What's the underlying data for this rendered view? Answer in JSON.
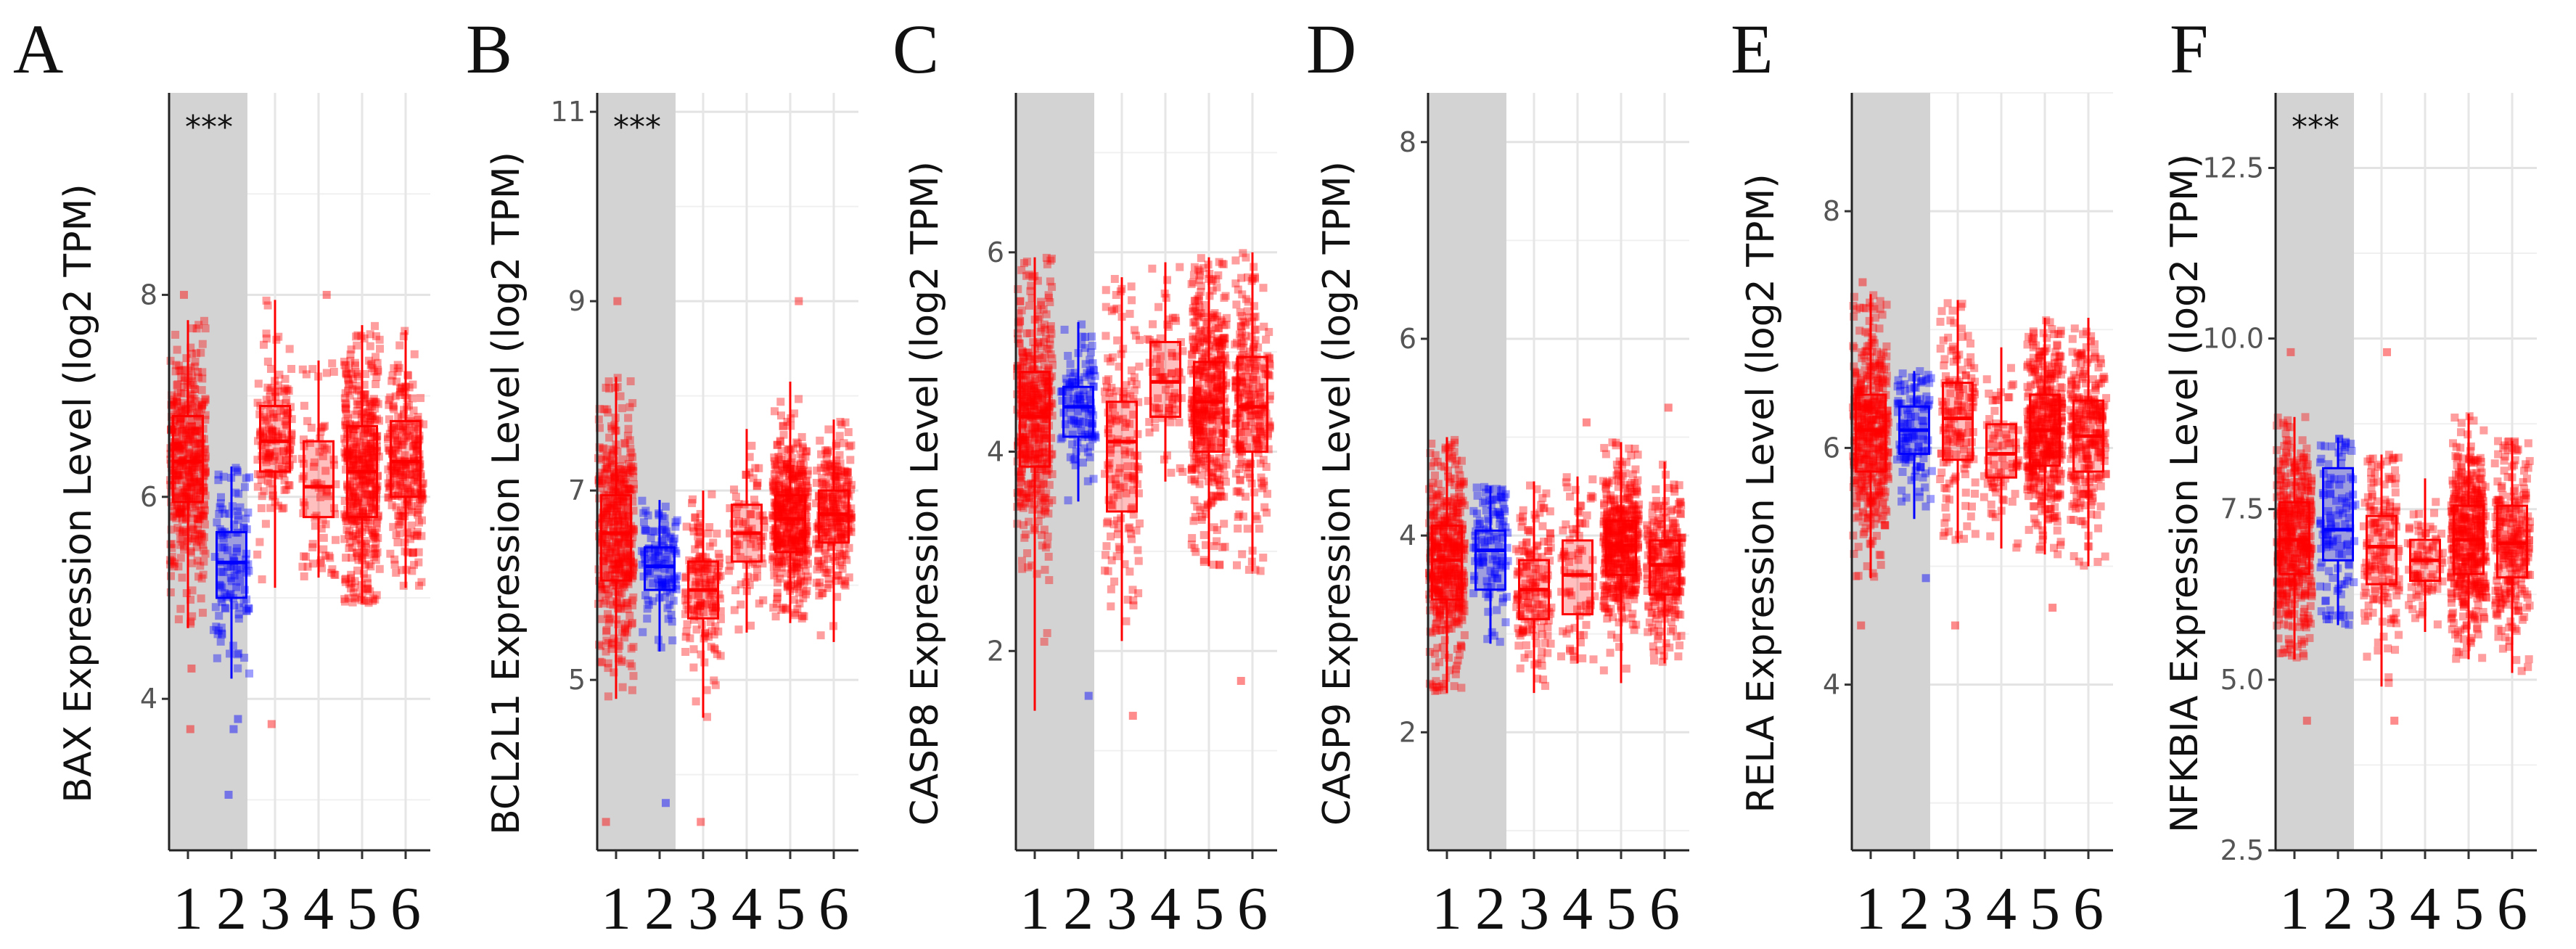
{
  "chart_data": [
    {
      "type": "box",
      "panel_label": "A",
      "title": "",
      "ylabel": "BAX Expression Level (log2 TPM)",
      "ylim": [
        2.5,
        10.0
      ],
      "yticks": [
        4,
        6,
        8
      ],
      "yminor": [
        3,
        5,
        7,
        9
      ],
      "categories": [
        "1",
        "2",
        "3",
        "4",
        "5",
        "6"
      ],
      "highlight_categories": [
        "1",
        "2"
      ],
      "significance": "***",
      "colors": [
        "#ff0000",
        "#0000ff",
        "#ff0000",
        "#ff0000",
        "#ff0000",
        "#ff0000"
      ],
      "series": [
        {
          "name": "1",
          "min": 4.7,
          "q1": 5.95,
          "median": 6.35,
          "q3": 6.8,
          "max": 7.75,
          "n": 500,
          "outliers": [
            3.7,
            4.3,
            8.0
          ]
        },
        {
          "name": "2",
          "min": 4.2,
          "q1": 5.0,
          "median": 5.35,
          "q3": 5.65,
          "max": 6.3,
          "n": 110,
          "outliers": [
            3.05,
            3.7,
            3.8
          ]
        },
        {
          "name": "3",
          "min": 5.1,
          "q1": 6.25,
          "median": 6.55,
          "q3": 6.9,
          "max": 7.95,
          "n": 150,
          "outliers": [
            3.75
          ]
        },
        {
          "name": "4",
          "min": 5.2,
          "q1": 5.8,
          "median": 6.1,
          "q3": 6.55,
          "max": 7.35,
          "n": 75,
          "outliers": [
            8.0
          ]
        },
        {
          "name": "5",
          "min": 4.95,
          "q1": 5.8,
          "median": 6.25,
          "q3": 6.7,
          "max": 7.7,
          "n": 450,
          "outliers": []
        },
        {
          "name": "6",
          "min": 5.1,
          "q1": 6.0,
          "median": 6.35,
          "q3": 6.75,
          "max": 7.65,
          "n": 250,
          "outliers": []
        }
      ]
    },
    {
      "type": "box",
      "panel_label": "B",
      "title": "",
      "ylabel": "BCL2L1 Expression Level (log2 TPM)",
      "ylim": [
        3.2,
        11.2
      ],
      "yticks": [
        5,
        7,
        9,
        11
      ],
      "yminor": [
        4,
        6,
        8,
        10
      ],
      "categories": [
        "1",
        "2",
        "3",
        "4",
        "5",
        "6"
      ],
      "highlight_categories": [
        "1",
        "2"
      ],
      "significance": "***",
      "colors": [
        "#ff0000",
        "#0000ff",
        "#ff0000",
        "#ff0000",
        "#ff0000",
        "#ff0000"
      ],
      "series": [
        {
          "name": "1",
          "min": 4.8,
          "q1": 6.05,
          "median": 6.55,
          "q3": 6.95,
          "max": 8.2,
          "n": 500,
          "outliers": [
            3.5,
            9.0
          ]
        },
        {
          "name": "2",
          "min": 5.3,
          "q1": 5.95,
          "median": 6.2,
          "q3": 6.4,
          "max": 6.9,
          "n": 110,
          "outliers": [
            3.7
          ]
        },
        {
          "name": "3",
          "min": 4.6,
          "q1": 5.65,
          "median": 5.95,
          "q3": 6.25,
          "max": 7.0,
          "n": 150,
          "outliers": [
            3.5
          ]
        },
        {
          "name": "4",
          "min": 5.5,
          "q1": 6.25,
          "median": 6.55,
          "q3": 6.85,
          "max": 7.65,
          "n": 75,
          "outliers": []
        },
        {
          "name": "5",
          "min": 5.6,
          "q1": 6.35,
          "median": 6.7,
          "q3": 6.95,
          "max": 8.15,
          "n": 450,
          "outliers": [
            9.0
          ]
        },
        {
          "name": "6",
          "min": 5.4,
          "q1": 6.45,
          "median": 6.75,
          "q3": 7.0,
          "max": 7.75,
          "n": 250,
          "outliers": []
        }
      ]
    },
    {
      "type": "box",
      "panel_label": "C",
      "title": "",
      "ylabel": "CASP8 Expression Level (log2 TPM)",
      "ylim": [
        0.0,
        7.6
      ],
      "yticks": [
        2,
        4,
        6
      ],
      "yminor": [
        1,
        3,
        5,
        7
      ],
      "categories": [
        "1",
        "2",
        "3",
        "4",
        "5",
        "6"
      ],
      "highlight_categories": [
        "1",
        "2"
      ],
      "significance": "",
      "colors": [
        "#ff0000",
        "#0000ff",
        "#ff0000",
        "#ff0000",
        "#ff0000",
        "#ff0000"
      ],
      "series": [
        {
          "name": "1",
          "min": 1.4,
          "q1": 3.85,
          "median": 4.35,
          "q3": 4.8,
          "max": 5.95,
          "n": 500,
          "outliers": []
        },
        {
          "name": "2",
          "min": 3.5,
          "q1": 4.15,
          "median": 4.45,
          "q3": 4.65,
          "max": 5.3,
          "n": 110,
          "outliers": [
            1.55
          ]
        },
        {
          "name": "3",
          "min": 2.1,
          "q1": 3.4,
          "median": 4.1,
          "q3": 4.5,
          "max": 5.75,
          "n": 150,
          "outliers": [
            1.35
          ]
        },
        {
          "name": "4",
          "min": 3.7,
          "q1": 4.35,
          "median": 4.7,
          "q3": 5.1,
          "max": 5.9,
          "n": 75,
          "outliers": []
        },
        {
          "name": "5",
          "min": 2.85,
          "q1": 4.0,
          "median": 4.5,
          "q3": 4.9,
          "max": 5.95,
          "n": 450,
          "outliers": []
        },
        {
          "name": "6",
          "min": 2.8,
          "q1": 4.0,
          "median": 4.45,
          "q3": 4.95,
          "max": 6.0,
          "n": 250,
          "outliers": [
            1.7
          ]
        }
      ]
    },
    {
      "type": "box",
      "panel_label": "D",
      "title": "",
      "ylabel": "CASP9 Expression Level (log2 TPM)",
      "ylim": [
        0.8,
        8.5
      ],
      "yticks": [
        2,
        4,
        6,
        8
      ],
      "yminor": [
        1,
        3,
        5,
        7
      ],
      "categories": [
        "1",
        "2",
        "3",
        "4",
        "5",
        "6"
      ],
      "highlight_categories": [
        "1",
        "2"
      ],
      "significance": "",
      "colors": [
        "#ff0000",
        "#0000ff",
        "#ff0000",
        "#ff0000",
        "#ff0000",
        "#ff0000"
      ],
      "series": [
        {
          "name": "1",
          "min": 2.4,
          "q1": 3.35,
          "median": 3.75,
          "q3": 4.1,
          "max": 5.0,
          "n": 500,
          "outliers": []
        },
        {
          "name": "2",
          "min": 2.9,
          "q1": 3.45,
          "median": 3.85,
          "q3": 4.05,
          "max": 4.5,
          "n": 110,
          "outliers": []
        },
        {
          "name": "3",
          "min": 2.4,
          "q1": 3.15,
          "median": 3.45,
          "q3": 3.75,
          "max": 4.55,
          "n": 150,
          "outliers": []
        },
        {
          "name": "4",
          "min": 2.7,
          "q1": 3.2,
          "median": 3.6,
          "q3": 3.95,
          "max": 4.6,
          "n": 75,
          "outliers": [
            5.15
          ]
        },
        {
          "name": "5",
          "min": 2.5,
          "q1": 3.6,
          "median": 3.9,
          "q3": 4.15,
          "max": 4.95,
          "n": 450,
          "outliers": []
        },
        {
          "name": "6",
          "min": 2.7,
          "q1": 3.4,
          "median": 3.7,
          "q3": 3.95,
          "max": 4.75,
          "n": 250,
          "outliers": [
            5.3
          ]
        }
      ]
    },
    {
      "type": "box",
      "panel_label": "E",
      "title": "",
      "ylabel": "RELA Expression Level (log2 TPM)",
      "ylim": [
        2.6,
        9.0
      ],
      "yticks": [
        4,
        6,
        8
      ],
      "yminor": [
        3,
        5,
        7,
        9
      ],
      "categories": [
        "1",
        "2",
        "3",
        "4",
        "5",
        "6"
      ],
      "highlight_categories": [
        "1",
        "2"
      ],
      "significance": "",
      "colors": [
        "#ff0000",
        "#0000ff",
        "#ff0000",
        "#ff0000",
        "#ff0000",
        "#ff0000"
      ],
      "series": [
        {
          "name": "1",
          "min": 4.9,
          "q1": 5.8,
          "median": 6.15,
          "q3": 6.45,
          "max": 7.3,
          "n": 500,
          "outliers": [
            4.5,
            7.4
          ]
        },
        {
          "name": "2",
          "min": 5.4,
          "q1": 5.95,
          "median": 6.15,
          "q3": 6.35,
          "max": 6.65,
          "n": 110,
          "outliers": [
            4.9
          ]
        },
        {
          "name": "3",
          "min": 5.2,
          "q1": 5.9,
          "median": 6.25,
          "q3": 6.55,
          "max": 7.25,
          "n": 150,
          "outliers": [
            4.5
          ]
        },
        {
          "name": "4",
          "min": 5.15,
          "q1": 5.75,
          "median": 5.95,
          "q3": 6.2,
          "max": 6.85,
          "n": 75,
          "outliers": []
        },
        {
          "name": "5",
          "min": 5.1,
          "q1": 5.85,
          "median": 6.15,
          "q3": 6.45,
          "max": 7.1,
          "n": 450,
          "outliers": [
            4.65
          ]
        },
        {
          "name": "6",
          "min": 5.0,
          "q1": 5.8,
          "median": 6.1,
          "q3": 6.4,
          "max": 7.1,
          "n": 250,
          "outliers": []
        }
      ]
    },
    {
      "type": "box",
      "panel_label": "F",
      "title": "",
      "ylabel": "NFKBIA Expression Level (log2 TPM)",
      "ylim": [
        2.5,
        13.6
      ],
      "yticks": [
        2.5,
        5.0,
        7.5,
        10.0,
        12.5
      ],
      "ytick_labels": [
        "2.5",
        "5.0",
        "7.5",
        "10.0",
        "12.5"
      ],
      "yminor": [
        3.75,
        6.25,
        8.75,
        11.25
      ],
      "categories": [
        "1",
        "2",
        "3",
        "4",
        "5",
        "6"
      ],
      "highlight_categories": [
        "1",
        "2"
      ],
      "significance": "***",
      "colors": [
        "#ff0000",
        "#0000ff",
        "#ff0000",
        "#ff0000",
        "#ff0000",
        "#ff0000"
      ],
      "series": [
        {
          "name": "1",
          "min": 5.3,
          "q1": 6.55,
          "median": 7.05,
          "q3": 7.6,
          "max": 8.85,
          "n": 500,
          "outliers": [
            4.4,
            9.8
          ]
        },
        {
          "name": "2",
          "min": 5.8,
          "q1": 6.75,
          "median": 7.2,
          "q3": 8.1,
          "max": 8.55,
          "n": 110,
          "outliers": []
        },
        {
          "name": "3",
          "min": 4.9,
          "q1": 6.4,
          "median": 6.95,
          "q3": 7.4,
          "max": 8.3,
          "n": 150,
          "outliers": [
            4.4,
            9.8
          ]
        },
        {
          "name": "4",
          "min": 5.7,
          "q1": 6.45,
          "median": 6.75,
          "q3": 7.05,
          "max": 7.95,
          "n": 75,
          "outliers": []
        },
        {
          "name": "5",
          "min": 5.3,
          "q1": 6.55,
          "median": 7.05,
          "q3": 7.55,
          "max": 8.9,
          "n": 450,
          "outliers": []
        },
        {
          "name": "6",
          "min": 5.1,
          "q1": 6.5,
          "median": 7.0,
          "q3": 7.55,
          "max": 8.5,
          "n": 250,
          "outliers": []
        }
      ]
    }
  ]
}
